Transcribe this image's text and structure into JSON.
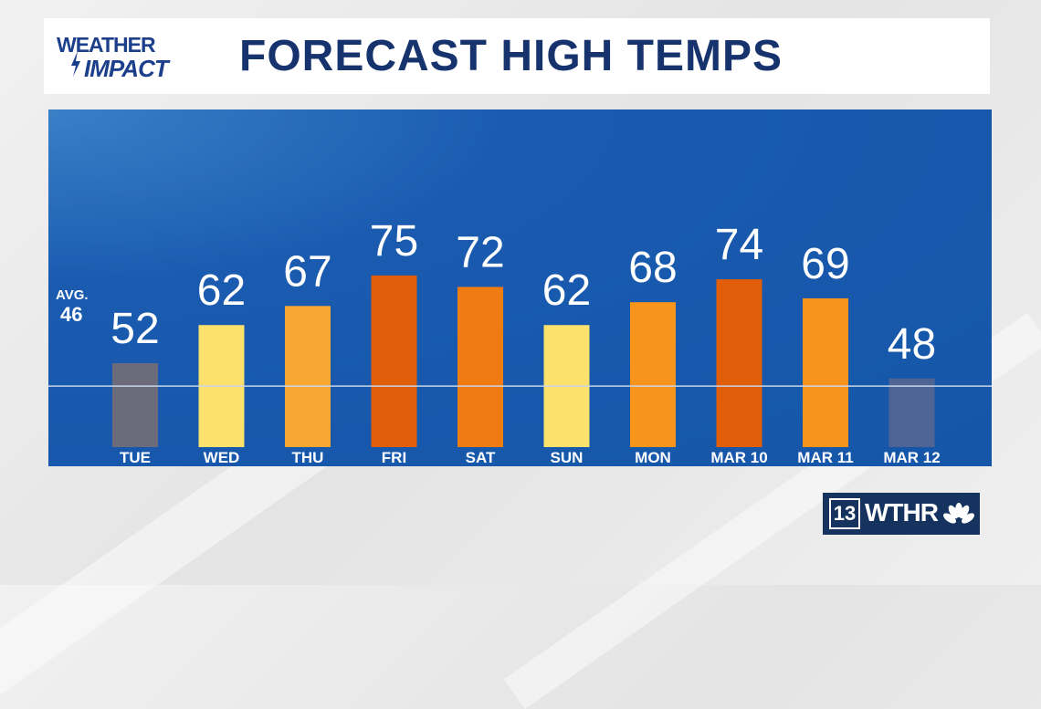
{
  "header": {
    "logo_line1": "WEATHER",
    "logo_line2": "IMPACT",
    "title": "FORECAST HIGH TEMPS"
  },
  "average": {
    "label": "AVG.",
    "value": 46
  },
  "station": {
    "channel": "13",
    "call_letters": "WTHR",
    "network_icon": "peacock-icon"
  },
  "colors": {
    "panel": "#1556a8",
    "below_avg": "#6b6b7c",
    "near_avg_cool": "#4f6494",
    "warm_light": "#fce26c",
    "warm_mid": "#f8a832",
    "warm": "#f6941c",
    "hot": "#f07b12",
    "hottest": "#e05e0a",
    "header_text": "#17336e"
  },
  "chart_data": {
    "type": "bar",
    "title": "FORECAST HIGH TEMPS",
    "categories": [
      "TUE",
      "WED",
      "THU",
      "FRI",
      "SAT",
      "SUN",
      "MON",
      "MAR 10",
      "MAR 11",
      "MAR 12"
    ],
    "values": [
      52,
      62,
      67,
      75,
      72,
      62,
      68,
      74,
      69,
      48
    ],
    "bar_colors": [
      "#6b6b7c",
      "#fce26c",
      "#f8a832",
      "#e05e0a",
      "#f07b12",
      "#fce26c",
      "#f6941c",
      "#e05e0a",
      "#f6941c",
      "#4f6494"
    ],
    "reference_line": {
      "label": "AVG.",
      "value": 46
    },
    "xlabel": "",
    "ylabel": "",
    "ylim": [
      30,
      75
    ],
    "grid": false,
    "legend": "none"
  }
}
